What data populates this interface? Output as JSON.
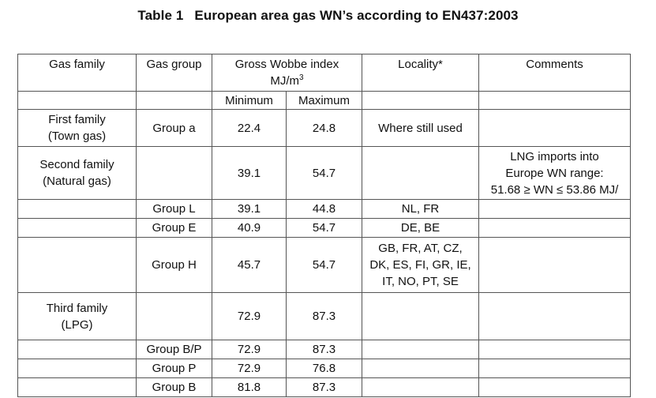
{
  "caption": {
    "label": "Table 1",
    "text": "European area gas WN’s according to EN437:2003"
  },
  "headers": {
    "gas_family": "Gas family",
    "gas_group": "Gas group",
    "wobbe_line1": "Gross Wobbe index",
    "wobbe_unit": "MJ/m",
    "wobbe_unit_sup": "3",
    "locality": "Locality*",
    "comments": "Comments",
    "minimum": "Minimum",
    "maximum": "Maximum"
  },
  "rows": [
    {
      "family": [
        "First family",
        "(Town gas)"
      ],
      "group": "Group a",
      "min": "22.4",
      "max": "24.8",
      "locality": [
        "Where still used"
      ],
      "comments": []
    },
    {
      "family": [
        "Second family",
        "(Natural gas)"
      ],
      "group": "",
      "min": "39.1",
      "max": "54.7",
      "locality": [],
      "comments": [
        "LNG imports into",
        "Europe WN range:",
        "51.68 ≥ WN ≤ 53.86 MJ/"
      ]
    },
    {
      "family": [],
      "group": "Group L",
      "min": "39.1",
      "max": "44.8",
      "locality": [
        "NL, FR"
      ],
      "comments": []
    },
    {
      "family": [],
      "group": "Group E",
      "min": "40.9",
      "max": "54.7",
      "locality": [
        "DE, BE"
      ],
      "comments": []
    },
    {
      "family": [],
      "group": "Group H",
      "min": "45.7",
      "max": "54.7",
      "locality": [
        "GB, FR, AT, CZ,",
        "DK, ES, FI, GR, IE,",
        "IT, NO, PT, SE"
      ],
      "comments": []
    },
    {
      "family": [
        "Third family",
        "(LPG)"
      ],
      "group": "",
      "min": "72.9",
      "max": "87.3",
      "locality": [],
      "comments": []
    },
    {
      "family": [],
      "group": "Group B/P",
      "min": "72.9",
      "max": "87.3",
      "locality": [],
      "comments": []
    },
    {
      "family": [],
      "group": "Group P",
      "min": "72.9",
      "max": "76.8",
      "locality": [],
      "comments": []
    },
    {
      "family": [],
      "group": "Group B",
      "min": "81.8",
      "max": "87.3",
      "locality": [],
      "comments": []
    }
  ]
}
